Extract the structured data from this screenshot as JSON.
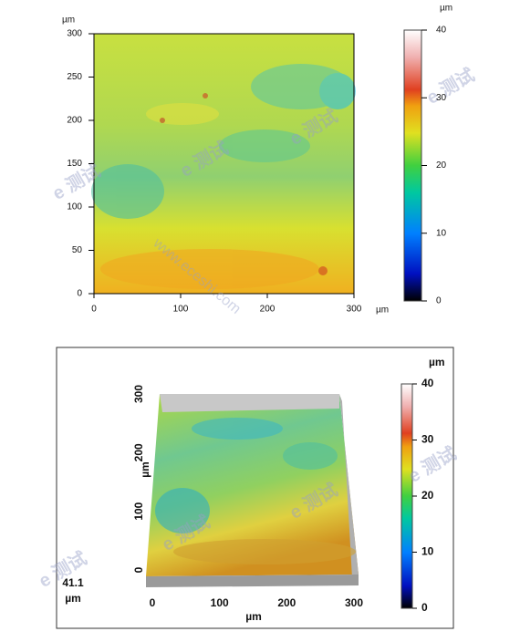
{
  "top_map": {
    "y_unit": "µm",
    "x_unit": "µm",
    "x_ticks": [
      0,
      100,
      200,
      300
    ],
    "y_ticks": [
      0,
      50,
      100,
      150,
      200,
      250,
      300
    ],
    "colorbar": {
      "unit": "µm",
      "ticks": [
        0,
        10,
        20,
        30,
        40
      ]
    }
  },
  "bottom_3d": {
    "y_label": "µm",
    "y_ticks": [
      0,
      100,
      200,
      300
    ],
    "z_value": "41.1",
    "z_unit": "µm",
    "x_ticks": [
      0,
      100,
      200,
      300
    ],
    "x_label": "µm",
    "colorbar": {
      "unit": "µm",
      "ticks": [
        0,
        10,
        20,
        30,
        40
      ]
    }
  },
  "watermarks": [
    "e 测试",
    "www.eceshi.com"
  ]
}
